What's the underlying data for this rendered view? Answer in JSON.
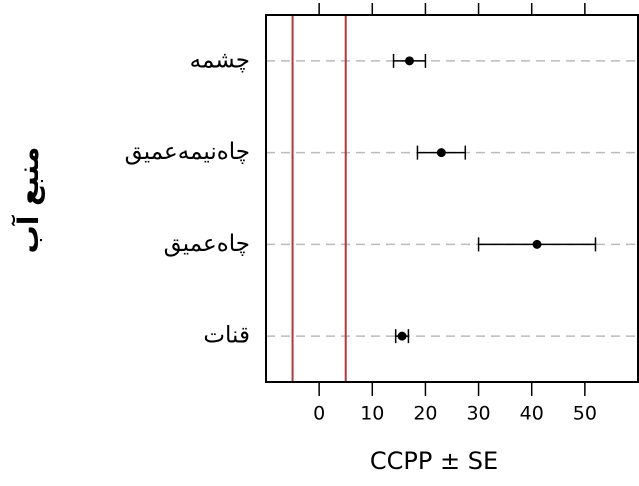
{
  "chart_data": {
    "type": "dot_errorbar",
    "xlabel": "CCPP ± SE",
    "ylabel": "منبع آب",
    "categories": [
      "چشمه",
      "چاه‌نیمه‌عمیق",
      "چاه‌عمیق",
      "قنات"
    ],
    "values": [
      17,
      23,
      41,
      15.6
    ],
    "errors": [
      3,
      4.5,
      11,
      1.2
    ],
    "color": "#000000",
    "ref_lines": [
      -5,
      5
    ],
    "ref_color": "#b03a3a",
    "xlim": [
      -10,
      60
    ],
    "xticks": [
      0,
      10,
      20,
      30,
      40,
      50
    ],
    "grid": true
  }
}
